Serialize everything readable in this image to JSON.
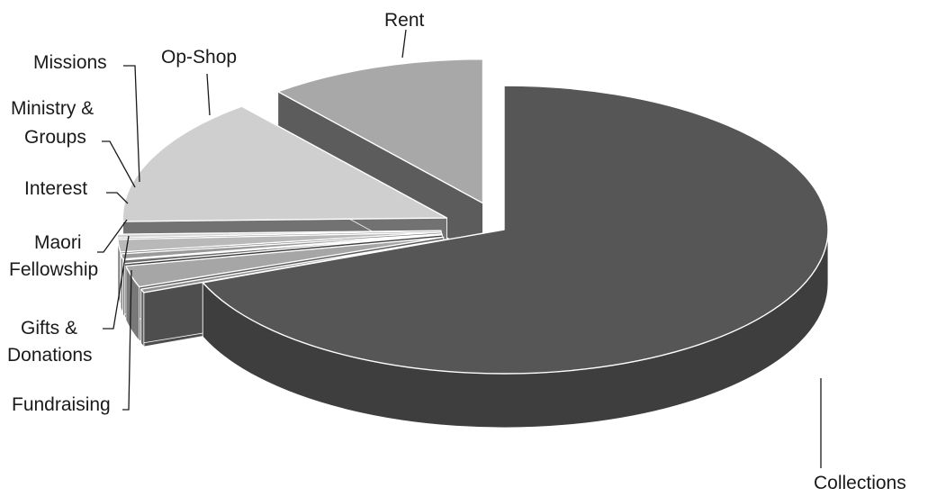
{
  "chart_data": {
    "type": "pie",
    "variant": "3d-exploded",
    "title": "",
    "legend": "none",
    "labels_shown": true,
    "values_shown": false,
    "slices": [
      {
        "name": "Collections",
        "value": 69.0,
        "color": "#565656"
      },
      {
        "name": "Fundraising",
        "value": 0.4,
        "color": "#8e8e8e"
      },
      {
        "name": "Gifts & Donations",
        "value": 2.4,
        "color": "#a6a6a6"
      },
      {
        "name": "Maori Fellowship",
        "value": 0.4,
        "color": "#6d6d6d"
      },
      {
        "name": "Interest",
        "value": 0.6,
        "color": "#9a9a9a"
      },
      {
        "name": "Ministry & Groups",
        "value": 1.4,
        "color": "#b9b9b9"
      },
      {
        "name": "Missions",
        "value": 0.4,
        "color": "#d2d2d2"
      },
      {
        "name": "Op-Shop",
        "value": 14.5,
        "color": "#cfcfcf"
      },
      {
        "name": "Rent",
        "value": 10.9,
        "color": "#a8a8a8"
      }
    ]
  },
  "labels": {
    "collections": "Collections",
    "fundraising": "Fundraising",
    "gifts_1": "Gifts &",
    "gifts_2": "Donations",
    "maori_1": "Maori",
    "maori_2": "Fellowship",
    "interest": "Interest",
    "ministry_1": "Ministry &",
    "ministry_2": "Groups",
    "missions": "Missions",
    "opshop": "Op-Shop",
    "rent": "Rent"
  }
}
